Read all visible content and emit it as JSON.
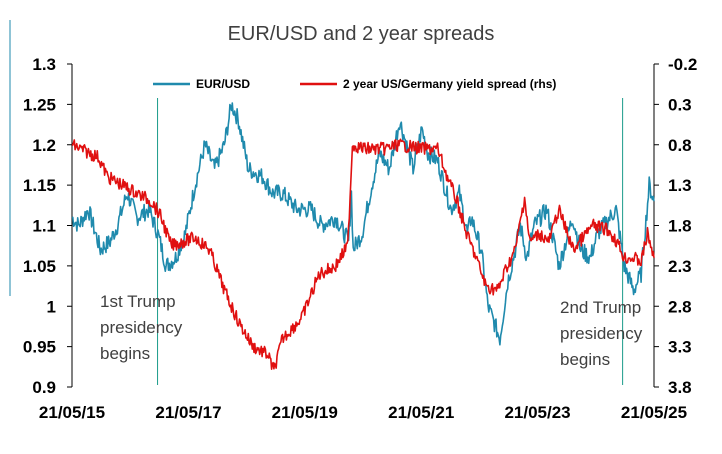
{
  "colors": {
    "eurusd": "#1f8aad",
    "spread": "#e01010",
    "marker": "#1a9a8a",
    "axis": "#000000",
    "text": "#404040"
  },
  "chart_data": {
    "type": "line",
    "title": "EUR/USD and 2 year spreads",
    "xlabel": "",
    "ylabel": "",
    "x_range": [
      "2015-05-21",
      "2025-05-21"
    ],
    "x_tick_labels": [
      "21/05/15",
      "21/05/17",
      "21/05/19",
      "21/05/21",
      "21/05/23",
      "21/05/25"
    ],
    "y_left": {
      "range": [
        0.9,
        1.3
      ],
      "tick_labels": [
        "0.9",
        "0.95",
        "1",
        "1.05",
        "1.1",
        "1.15",
        "1.2",
        "1.25",
        "1.3"
      ]
    },
    "y_right": {
      "range": [
        -0.2,
        3.8
      ],
      "inverted": true,
      "tick_labels": [
        "-0.2",
        "0.3",
        "0.8",
        "1.3",
        "1.8",
        "2.3",
        "2.8",
        "3.3",
        "3.8"
      ]
    },
    "legend": {
      "placement": "top"
    },
    "grid": false,
    "series": [
      {
        "name": "EUR/USD",
        "axis": "left",
        "points": [
          [
            "2015-05-21",
            1.11
          ],
          [
            "2015-07-01",
            1.1
          ],
          [
            "2015-09-01",
            1.12
          ],
          [
            "2015-11-15",
            1.07
          ],
          [
            "2016-01-15",
            1.08
          ],
          [
            "2016-03-01",
            1.1
          ],
          [
            "2016-05-01",
            1.14
          ],
          [
            "2016-07-01",
            1.11
          ],
          [
            "2016-09-15",
            1.12
          ],
          [
            "2016-11-10",
            1.09
          ],
          [
            "2017-01-01",
            1.05
          ],
          [
            "2017-03-01",
            1.06
          ],
          [
            "2017-05-01",
            1.09
          ],
          [
            "2017-07-01",
            1.15
          ],
          [
            "2017-09-01",
            1.2
          ],
          [
            "2017-11-01",
            1.17
          ],
          [
            "2018-01-01",
            1.2
          ],
          [
            "2018-02-15",
            1.25
          ],
          [
            "2018-04-01",
            1.23
          ],
          [
            "2018-05-01",
            1.2
          ],
          [
            "2018-06-01",
            1.17
          ],
          [
            "2018-09-01",
            1.16
          ],
          [
            "2018-11-01",
            1.14
          ],
          [
            "2019-01-01",
            1.14
          ],
          [
            "2019-04-01",
            1.12
          ],
          [
            "2019-07-01",
            1.12
          ],
          [
            "2019-09-01",
            1.1
          ],
          [
            "2019-12-01",
            1.11
          ],
          [
            "2020-02-20",
            1.08
          ],
          [
            "2020-03-09",
            1.14
          ],
          [
            "2020-03-20",
            1.07
          ],
          [
            "2020-05-15",
            1.09
          ],
          [
            "2020-07-15",
            1.15
          ],
          [
            "2020-09-01",
            1.19
          ],
          [
            "2020-11-01",
            1.17
          ],
          [
            "2021-01-06",
            1.23
          ],
          [
            "2021-03-31",
            1.17
          ],
          [
            "2021-05-25",
            1.22
          ],
          [
            "2021-07-01",
            1.19
          ],
          [
            "2021-09-01",
            1.18
          ],
          [
            "2021-11-24",
            1.12
          ],
          [
            "2022-01-15",
            1.14
          ],
          [
            "2022-03-07",
            1.09
          ],
          [
            "2022-04-01",
            1.11
          ],
          [
            "2022-06-01",
            1.07
          ],
          [
            "2022-07-14",
            1.0
          ],
          [
            "2022-09-27",
            0.96
          ],
          [
            "2022-11-15",
            1.03
          ],
          [
            "2023-01-01",
            1.07
          ],
          [
            "2023-02-02",
            1.1
          ],
          [
            "2023-03-15",
            1.06
          ],
          [
            "2023-05-01",
            1.1
          ],
          [
            "2023-07-18",
            1.12
          ],
          [
            "2023-10-03",
            1.05
          ],
          [
            "2023-12-28",
            1.11
          ],
          [
            "2024-02-15",
            1.07
          ],
          [
            "2024-04-16",
            1.06
          ],
          [
            "2024-06-01",
            1.09
          ],
          [
            "2024-09-25",
            1.12
          ],
          [
            "2024-11-15",
            1.05
          ],
          [
            "2025-01-13",
            1.02
          ],
          [
            "2025-03-01",
            1.04
          ],
          [
            "2025-04-21",
            1.15
          ],
          [
            "2025-05-21",
            1.13
          ]
        ]
      },
      {
        "name": "2 year US/Germany yield spread (rhs)",
        "axis": "right",
        "points": [
          [
            "2015-05-21",
            0.8
          ],
          [
            "2015-09-01",
            0.9
          ],
          [
            "2015-11-01",
            0.95
          ],
          [
            "2016-01-01",
            1.2
          ],
          [
            "2016-04-01",
            1.3
          ],
          [
            "2016-07-01",
            1.4
          ],
          [
            "2016-10-01",
            1.5
          ],
          [
            "2016-12-01",
            1.7
          ],
          [
            "2017-02-01",
            2.05
          ],
          [
            "2017-04-15",
            2.0
          ],
          [
            "2017-07-01",
            1.95
          ],
          [
            "2017-10-01",
            2.1
          ],
          [
            "2018-01-01",
            2.6
          ],
          [
            "2018-04-01",
            3.0
          ],
          [
            "2018-07-01",
            3.3
          ],
          [
            "2018-10-01",
            3.4
          ],
          [
            "2018-11-08",
            3.6
          ],
          [
            "2019-01-01",
            3.2
          ],
          [
            "2019-05-01",
            2.95
          ],
          [
            "2019-08-20",
            2.4
          ],
          [
            "2019-12-01",
            2.3
          ],
          [
            "2020-02-15",
            2.05
          ],
          [
            "2020-03-15",
            0.8
          ],
          [
            "2020-06-01",
            0.85
          ],
          [
            "2020-10-01",
            0.85
          ],
          [
            "2021-01-01",
            0.8
          ],
          [
            "2021-06-01",
            0.85
          ],
          [
            "2021-09-01",
            0.85
          ],
          [
            "2021-11-01",
            1.2
          ],
          [
            "2022-01-01",
            1.5
          ],
          [
            "2022-03-01",
            1.9
          ],
          [
            "2022-05-01",
            2.2
          ],
          [
            "2022-07-01",
            2.55
          ],
          [
            "2022-09-15",
            2.6
          ],
          [
            "2022-11-01",
            2.35
          ],
          [
            "2023-01-01",
            2.1
          ],
          [
            "2023-03-01",
            1.45
          ],
          [
            "2023-04-01",
            2.0
          ],
          [
            "2023-06-01",
            1.9
          ],
          [
            "2023-08-01",
            2.0
          ],
          [
            "2023-10-01",
            1.6
          ],
          [
            "2023-12-31",
            2.1
          ],
          [
            "2024-03-01",
            1.95
          ],
          [
            "2024-05-01",
            1.8
          ],
          [
            "2024-08-01",
            1.85
          ],
          [
            "2024-10-01",
            2.0
          ],
          [
            "2024-11-15",
            2.2
          ],
          [
            "2025-01-10",
            2.2
          ],
          [
            "2025-03-01",
            2.25
          ],
          [
            "2025-04-10",
            1.9
          ],
          [
            "2025-05-21",
            2.2
          ]
        ]
      }
    ],
    "annotations": [
      {
        "date": "2016-11-08",
        "label": "1st Trump presidency begins",
        "lines": [
          "1st Trump",
          "presidency",
          "begins"
        ]
      },
      {
        "date": "2024-11-05",
        "label": "2nd Trump presidency begins",
        "lines": [
          "2nd Trump",
          "presidency",
          "begins"
        ]
      }
    ]
  }
}
